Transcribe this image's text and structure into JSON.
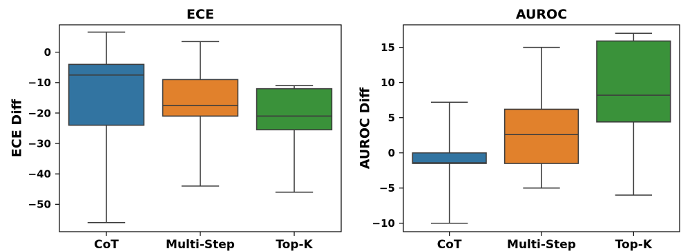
{
  "chart_data": [
    {
      "type": "box",
      "title": "ECE",
      "ylabel": "ECE Diff",
      "xlabel": "",
      "categories": [
        "CoT",
        "Multi-Step",
        "Top-K"
      ],
      "ylim": [
        -59,
        9
      ],
      "yticks": [
        0,
        -10,
        -20,
        -30,
        -40,
        -50
      ],
      "ytick_labels": [
        "0",
        "−10",
        "−20",
        "−30",
        "−40",
        "−50"
      ],
      "boxes": [
        {
          "category": "CoT",
          "whisker_low": -56,
          "q1": -24,
          "median": -7.5,
          "q3": -4,
          "whisker_high": 6.6,
          "color": "#3274a1"
        },
        {
          "category": "Multi-Step",
          "whisker_low": -44,
          "q1": -21,
          "median": -17.5,
          "q3": -9,
          "whisker_high": 3.5,
          "color": "#e1812c"
        },
        {
          "category": "Top-K",
          "whisker_low": -46,
          "q1": -25.5,
          "median": -21,
          "q3": -12,
          "whisker_high": -11,
          "color": "#3a923a"
        }
      ]
    },
    {
      "type": "box",
      "title": "AUROC",
      "ylabel": "AUROC Diff",
      "xlabel": "",
      "categories": [
        "CoT",
        "Multi-Step",
        "Top-K"
      ],
      "ylim": [
        -11.2,
        18.2
      ],
      "yticks": [
        15,
        10,
        5,
        0,
        -5,
        -10
      ],
      "ytick_labels": [
        "15",
        "10",
        "5",
        "0",
        "−5",
        "−10"
      ],
      "boxes": [
        {
          "category": "CoT",
          "whisker_low": -10,
          "q1": -1.5,
          "median": -1.4,
          "q3": 0,
          "whisker_high": 7.2,
          "color": "#3274a1"
        },
        {
          "category": "Multi-Step",
          "whisker_low": -5,
          "q1": -1.5,
          "median": 2.6,
          "q3": 6.2,
          "whisker_high": 15,
          "color": "#e1812c"
        },
        {
          "category": "Top-K",
          "whisker_low": -6,
          "q1": 4.4,
          "median": 8.2,
          "q3": 15.9,
          "whisker_high": 17,
          "color": "#3a923a"
        }
      ]
    }
  ],
  "colors": {
    "line": "#3d3d3d",
    "frame": "#000000"
  }
}
